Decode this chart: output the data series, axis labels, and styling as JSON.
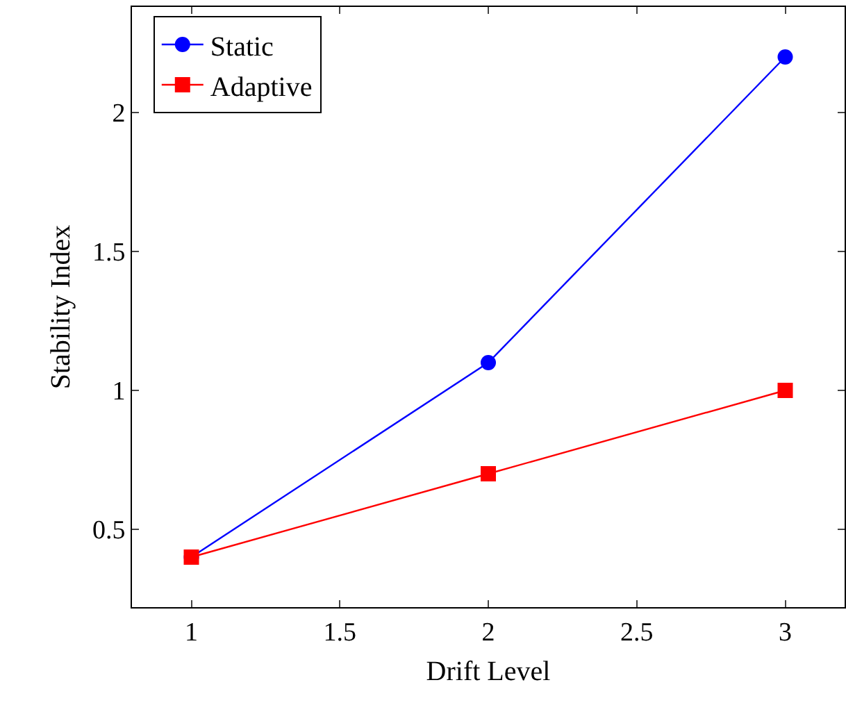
{
  "chart_data": {
    "type": "line",
    "xlabel": "Drift Level",
    "ylabel": "Stability Index",
    "x": [
      1,
      2,
      3
    ],
    "series": [
      {
        "name": "Static",
        "color": "#0000ff",
        "marker": "circle",
        "values": [
          0.4,
          1.1,
          2.2
        ]
      },
      {
        "name": "Adaptive",
        "color": "#ff0000",
        "marker": "square",
        "values": [
          0.4,
          0.7,
          1.0
        ]
      }
    ],
    "xlim": [
      0.8,
      3.2
    ],
    "xticks": [
      1,
      1.5,
      2,
      2.5,
      3
    ],
    "ylim": [
      0.22,
      2.38
    ],
    "yticks": [
      0.5,
      1,
      1.5,
      2
    ],
    "grid": false,
    "legend": "top left",
    "line_style": "solid"
  }
}
